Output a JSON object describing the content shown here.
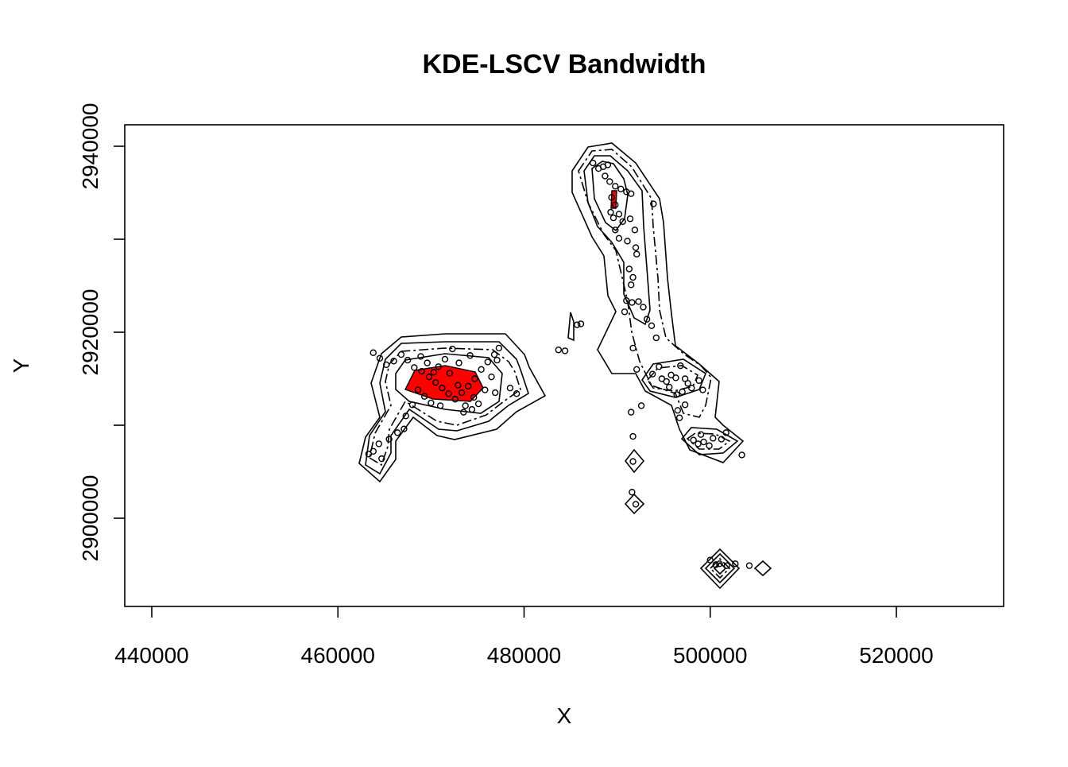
{
  "chart_data": {
    "type": "scatter",
    "title": "KDE-LSCV Bandwidth",
    "x_label": "X",
    "y_label": "Y",
    "xlim": [
      437097,
      531525
    ],
    "ylim": [
      2890513,
      2942308
    ],
    "xticks": [
      440000,
      460000,
      480000,
      500000,
      520000
    ],
    "yticks": [
      2900000,
      2920000,
      2940000
    ],
    "yminor_ticks": [
      2910000,
      2930000
    ],
    "color": "#000000",
    "x": [
      463800,
      464500,
      465200,
      466000,
      466800,
      467500,
      468200,
      469000,
      469800,
      470500,
      471200,
      471900,
      472600,
      473300,
      474000,
      474700,
      475400,
      476100,
      476800,
      477300,
      477100,
      476500,
      475800,
      475100,
      474400,
      473700,
      470000,
      469300,
      468600,
      470800,
      472000,
      473000,
      471500,
      469600,
      472300,
      474200,
      478500,
      479200,
      476900,
      467100,
      466400,
      465500,
      464400,
      463800,
      463300,
      464700,
      468000,
      467300,
      473500,
      474600,
      471000,
      472900,
      470300,
      468900,
      487400,
      488000,
      488500,
      489000,
      488700,
      489200,
      489800,
      490400,
      491000,
      491500,
      489400,
      489800,
      489300,
      489600,
      490200,
      490600,
      491400,
      489800,
      490200,
      491100,
      491900,
      492000,
      492100,
      491300,
      491700,
      491500,
      491000,
      491600,
      492300,
      492800,
      493200,
      493700,
      494200,
      493900,
      490800,
      491700,
      492100,
      493800,
      494500,
      494800,
      495300,
      495800,
      496300,
      496800,
      497300,
      497600,
      498000,
      497000,
      496400,
      495600,
      498800,
      499200,
      496500,
      496700,
      497300,
      491500,
      492600,
      491700,
      498200,
      498700,
      499300,
      499900,
      500300,
      501200,
      501700,
      499000,
      483700,
      484400,
      485700,
      486100,
      491700,
      491600,
      492000,
      503400,
      500000,
      500600,
      501000,
      501800,
      502700,
      504200
    ],
    "values": [
      2917800,
      2917200,
      2916500,
      2916900,
      2917600,
      2917000,
      2916200,
      2915800,
      2915200,
      2914600,
      2914000,
      2913400,
      2912800,
      2913500,
      2914200,
      2915000,
      2916000,
      2916800,
      2917600,
      2918300,
      2917000,
      2915200,
      2913800,
      2912300,
      2911700,
      2912100,
      2912400,
      2913100,
      2913800,
      2916300,
      2915600,
      2916700,
      2917100,
      2916700,
      2918200,
      2917500,
      2914000,
      2913400,
      2913500,
      2909600,
      2909200,
      2908500,
      2908000,
      2907200,
      2906900,
      2906400,
      2912200,
      2911000,
      2911400,
      2913000,
      2912100,
      2914300,
      2915700,
      2917400,
      2938200,
      2937600,
      2937800,
      2938000,
      2936800,
      2936200,
      2935700,
      2935400,
      2935100,
      2934900,
      2934500,
      2933700,
      2932900,
      2932300,
      2932700,
      2931900,
      2932200,
      2931000,
      2930100,
      2929800,
      2931000,
      2929100,
      2928400,
      2926800,
      2925900,
      2925100,
      2923400,
      2923200,
      2923300,
      2922700,
      2921400,
      2920700,
      2919400,
      2933800,
      2922200,
      2918300,
      2916000,
      2915500,
      2916300,
      2915000,
      2914700,
      2915400,
      2915100,
      2916400,
      2915000,
      2914500,
      2914000,
      2913600,
      2913300,
      2914100,
      2914800,
      2913800,
      2911600,
      2910800,
      2912200,
      2911400,
      2912100,
      2908800,
      2908400,
      2908000,
      2908200,
      2907800,
      2908600,
      2908500,
      2909200,
      2909000,
      2918100,
      2918000,
      2920800,
      2920900,
      2906100,
      2902800,
      2901500,
      2906800,
      2895500,
      2895000,
      2895100,
      2894900,
      2895100,
      2894900
    ]
  }
}
